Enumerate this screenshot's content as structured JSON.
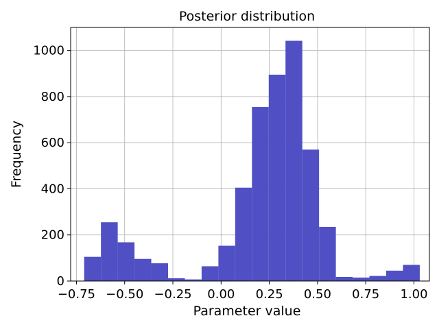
{
  "chart_data": {
    "type": "bar",
    "title": "Posterior distribution",
    "xlabel": "Parameter value",
    "ylabel": "Frequency",
    "xlim": [
      -0.78,
      1.08
    ],
    "ylim": [
      0,
      1100
    ],
    "xticks": [
      -0.75,
      -0.5,
      -0.25,
      0.0,
      0.25,
      0.5,
      0.75,
      1.0
    ],
    "xtick_labels": [
      "−0.75",
      "−0.50",
      "−0.25",
      "0.00",
      "0.25",
      "0.50",
      "0.75",
      "1.00"
    ],
    "yticks": [
      0,
      200,
      400,
      600,
      800,
      1000
    ],
    "ytick_labels": [
      "0",
      "200",
      "400",
      "600",
      "800",
      "1000"
    ],
    "grid": true,
    "bar_color": "#5050c4",
    "bin_edges": [
      -0.71,
      -0.623,
      -0.536,
      -0.449,
      -0.362,
      -0.275,
      -0.188,
      -0.101,
      -0.014,
      0.073,
      0.16,
      0.247,
      0.334,
      0.421,
      0.508,
      0.595,
      0.682,
      0.769,
      0.856,
      0.943,
      1.03
    ],
    "values": [
      105,
      255,
      168,
      96,
      77,
      12,
      7,
      64,
      153,
      405,
      755,
      895,
      1042,
      570,
      235,
      18,
      15,
      22,
      45,
      70
    ]
  }
}
